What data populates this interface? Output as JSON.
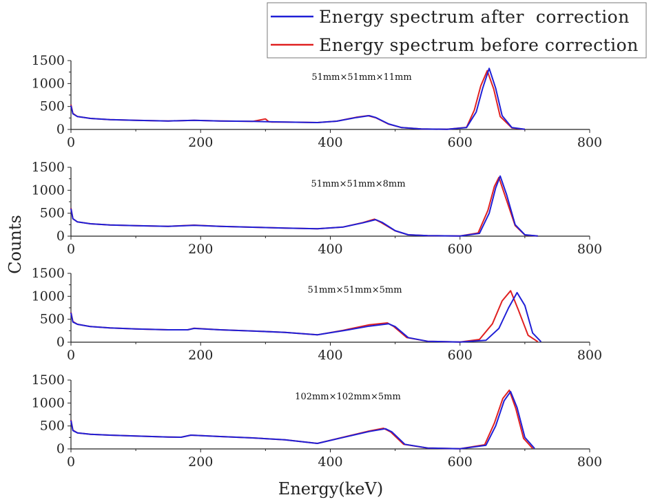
{
  "chart_data": {
    "type": "line",
    "ylabel": "Counts",
    "xlabel": "Energy(keV)",
    "legend": {
      "placement": "top-right",
      "entries": [
        {
          "label": "Energy spectrum after  correction",
          "color": "#1f1fd6"
        },
        {
          "label": "Energy spectrum before correction",
          "color": "#e02020"
        }
      ]
    },
    "xlim": [
      0,
      800
    ],
    "xticks": [
      "0",
      "200",
      "400",
      "600",
      "800"
    ],
    "ylim": [
      0,
      1500
    ],
    "yticks": [
      "0",
      "500",
      "1000",
      "1500"
    ],
    "grid": false,
    "panels": [
      {
        "annotation": "51mm×51mm×11mm",
        "series": [
          {
            "name": "Energy spectrum after  correction",
            "color": "#1f1fd6",
            "x": [
              0,
              3,
              10,
              30,
              60,
              100,
              150,
              190,
              230,
              280,
              330,
              380,
              410,
              440,
              460,
              470,
              490,
              510,
              540,
              580,
              610,
              625,
              635,
              645,
              655,
              665,
              680,
              700
            ],
            "y": [
              520,
              340,
              280,
              240,
              215,
              200,
              185,
              200,
              185,
              175,
              160,
              150,
              180,
              260,
              300,
              260,
              120,
              40,
              10,
              5,
              40,
              380,
              900,
              1330,
              900,
              300,
              40,
              5
            ]
          },
          {
            "name": "Energy spectrum before correction",
            "color": "#e02020",
            "x": [
              0,
              3,
              10,
              30,
              60,
              100,
              150,
              190,
              230,
              280,
              300,
              305,
              310,
              330,
              380,
              410,
              440,
              458,
              470,
              490,
              510,
              540,
              580,
              610,
              622,
              632,
              642,
              652,
              662,
              680,
              700
            ],
            "y": [
              540,
              350,
              280,
              240,
              215,
              200,
              185,
              200,
              185,
              175,
              230,
              170,
              160,
              160,
              150,
              180,
              265,
              300,
              255,
              115,
              40,
              10,
              5,
              45,
              420,
              950,
              1280,
              880,
              280,
              35,
              5
            ]
          }
        ]
      },
      {
        "annotation": "51mm×51mm×8mm",
        "series": [
          {
            "name": "Energy spectrum after  correction",
            "color": "#1f1fd6",
            "x": [
              0,
              3,
              10,
              30,
              60,
              100,
              150,
              190,
              230,
              280,
              330,
              380,
              420,
              450,
              470,
              480,
              500,
              520,
              550,
              600,
              630,
              645,
              655,
              662,
              672,
              685,
              700,
              720
            ],
            "y": [
              600,
              380,
              310,
              270,
              245,
              230,
              215,
              235,
              215,
              195,
              175,
              160,
              200,
              290,
              360,
              300,
              120,
              30,
              10,
              5,
              60,
              500,
              1050,
              1310,
              900,
              250,
              30,
              5
            ]
          },
          {
            "name": "Energy spectrum before correction",
            "color": "#e02020",
            "x": [
              0,
              3,
              10,
              30,
              60,
              100,
              150,
              190,
              230,
              280,
              330,
              380,
              420,
              450,
              468,
              478,
              500,
              520,
              550,
              600,
              628,
              643,
              653,
              660,
              670,
              685,
              700,
              720
            ],
            "y": [
              610,
              380,
              310,
              270,
              245,
              230,
              215,
              240,
              215,
              195,
              175,
              160,
              200,
              295,
              370,
              300,
              115,
              30,
              10,
              5,
              70,
              560,
              1080,
              1280,
              860,
              230,
              25,
              5
            ]
          }
        ]
      },
      {
        "annotation": "51mm×51mm×5mm",
        "series": [
          {
            "name": "Energy spectrum after  correction",
            "color": "#1f1fd6",
            "x": [
              0,
              3,
              10,
              30,
              60,
              100,
              150,
              180,
              190,
              230,
              280,
              330,
              380,
              420,
              460,
              490,
              500,
              520,
              550,
              600,
              640,
              660,
              675,
              688,
              700,
              712,
              725
            ],
            "y": [
              640,
              440,
              390,
              340,
              310,
              290,
              270,
              270,
              300,
              270,
              245,
              215,
              160,
              250,
              350,
              400,
              340,
              100,
              20,
              5,
              40,
              300,
              750,
              1080,
              800,
              200,
              10
            ]
          },
          {
            "name": "Energy spectrum before correction",
            "color": "#e02020",
            "x": [
              0,
              3,
              10,
              30,
              60,
              100,
              150,
              180,
              190,
              230,
              280,
              330,
              380,
              420,
              460,
              488,
              498,
              518,
              550,
              600,
              630,
              650,
              665,
              678,
              690,
              705,
              720
            ],
            "y": [
              650,
              450,
              390,
              340,
              310,
              290,
              270,
              270,
              305,
              270,
              245,
              215,
              160,
              260,
              380,
              420,
              340,
              100,
              20,
              5,
              60,
              400,
              900,
              1120,
              700,
              150,
              10
            ]
          }
        ]
      },
      {
        "annotation": "102mm×102mm×5mm",
        "series": [
          {
            "name": "Energy spectrum after  correction",
            "color": "#1f1fd6",
            "x": [
              0,
              3,
              10,
              30,
              60,
              100,
              150,
              170,
              185,
              230,
              280,
              330,
              380,
              420,
              460,
              485,
              495,
              515,
              550,
              600,
              640,
              655,
              668,
              678,
              688,
              700,
              715
            ],
            "y": [
              620,
              400,
              350,
              320,
              300,
              280,
              260,
              255,
              300,
              270,
              240,
              200,
              120,
              250,
              380,
              440,
              370,
              100,
              20,
              5,
              80,
              500,
              1050,
              1250,
              900,
              250,
              10
            ]
          },
          {
            "name": "Energy spectrum before correction",
            "color": "#e02020",
            "x": [
              0,
              3,
              10,
              30,
              60,
              100,
              150,
              170,
              185,
              230,
              280,
              330,
              380,
              420,
              460,
              482,
              493,
              513,
              550,
              600,
              638,
              653,
              666,
              676,
              686,
              698,
              712
            ],
            "y": [
              630,
              410,
              350,
              320,
              300,
              280,
              260,
              255,
              300,
              270,
              240,
              200,
              120,
              255,
              390,
              450,
              370,
              100,
              20,
              5,
              90,
              560,
              1100,
              1280,
              880,
              230,
              10
            ]
          }
        ]
      }
    ]
  }
}
